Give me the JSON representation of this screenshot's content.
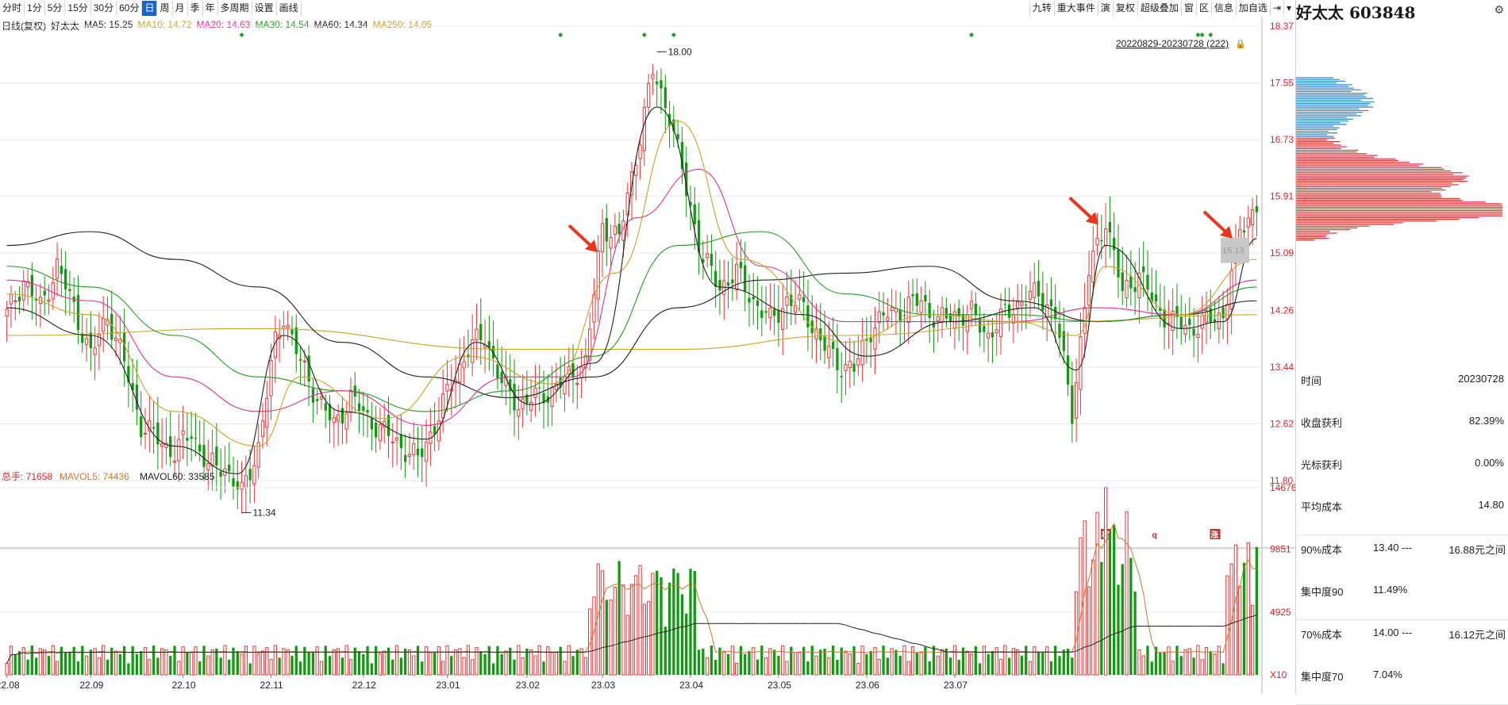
{
  "toolbar": {
    "left": [
      "分时",
      "1分",
      "5分",
      "15分",
      "30分",
      "60分",
      "日",
      "周",
      "月",
      "季",
      "年",
      "多周期",
      "设置",
      "画线"
    ],
    "active": "日",
    "right": [
      "九转",
      "重大事件",
      "演",
      "复权",
      "超级叠加",
      "窗",
      "区",
      "信息",
      "加自选"
    ]
  },
  "info": {
    "period": "日线(复权)",
    "name": "好太太",
    "ma": [
      {
        "text": "MA5: 15.25",
        "color": "#222222"
      },
      {
        "text": "MA10: 14.72",
        "color": "#c9a227"
      },
      {
        "text": "MA20: 14.63",
        "color": "#e0338a"
      },
      {
        "text": "MA30: 14.54",
        "color": "#1e9e1e"
      },
      {
        "text": "MA60: 14.34",
        "color": "#222222"
      },
      {
        "text": "MA250: 14.05",
        "color": "#c9a227"
      }
    ]
  },
  "chart_data": {
    "type": "candlestick",
    "date_range_label": "20220829-20230728 (222)",
    "price_ticks": [
      "18.37",
      "17.55",
      "16.73",
      "15.91",
      "15.09",
      "14.26",
      "13.44",
      "12.62",
      "11.80"
    ],
    "ylim": [
      11.0,
      18.37
    ],
    "high_label": "18.00",
    "low_label": "11.34",
    "price_tag": "15.13",
    "x_ticks": [
      "22.08",
      "22.09",
      "22.10",
      "22.11",
      "22.12",
      "23.01",
      "23.02",
      "23.03",
      "23.04",
      "23.05",
      "23.06",
      "23.07"
    ],
    "volume_legend": [
      {
        "text": "总手: 71658",
        "color": "#d6262b"
      },
      {
        "text": "MAVOL5: 74436",
        "color": "#c9782a"
      },
      {
        "text": "MAVOL60: 33585",
        "color": "#222222"
      }
    ],
    "volume_ticks": [
      "14676",
      "9851",
      "4925",
      "X10"
    ],
    "volume_max": 14676,
    "event_markers": [
      "榜",
      "q",
      "涨"
    ],
    "anchors": [
      [
        0,
        14.2
      ],
      [
        4,
        14.7
      ],
      [
        8,
        14.3
      ],
      [
        12,
        14.9
      ],
      [
        16,
        14.3
      ],
      [
        20,
        13.6
      ],
      [
        24,
        14.2
      ],
      [
        28,
        13.5
      ],
      [
        32,
        12.6
      ],
      [
        36,
        12.4
      ],
      [
        40,
        12.2
      ],
      [
        44,
        12.5
      ],
      [
        48,
        12.0
      ],
      [
        52,
        12.0
      ],
      [
        56,
        11.6
      ],
      [
        60,
        12.3
      ],
      [
        64,
        13.8
      ],
      [
        66,
        14.2
      ],
      [
        70,
        13.5
      ],
      [
        74,
        13.0
      ],
      [
        78,
        12.6
      ],
      [
        82,
        13.0
      ],
      [
        86,
        12.7
      ],
      [
        90,
        12.5
      ],
      [
        94,
        12.3
      ],
      [
        98,
        12.1
      ],
      [
        102,
        12.6
      ],
      [
        106,
        13.2
      ],
      [
        110,
        13.7
      ],
      [
        114,
        13.9
      ],
      [
        118,
        13.2
      ],
      [
        122,
        12.9
      ],
      [
        126,
        13.0
      ],
      [
        130,
        13.1
      ],
      [
        134,
        13.3
      ],
      [
        138,
        13.5
      ],
      [
        142,
        15.5
      ],
      [
        146,
        15.3
      ],
      [
        150,
        16.5
      ],
      [
        154,
        17.7
      ],
      [
        158,
        17.1
      ],
      [
        162,
        16.0
      ],
      [
        166,
        15.0
      ],
      [
        170,
        14.6
      ],
      [
        174,
        14.8
      ],
      [
        178,
        14.4
      ],
      [
        182,
        14.1
      ],
      [
        186,
        14.4
      ],
      [
        190,
        14.3
      ],
      [
        194,
        13.8
      ],
      [
        198,
        13.5
      ],
      [
        202,
        13.4
      ],
      [
        206,
        14.0
      ],
      [
        210,
        14.2
      ],
      [
        214,
        14.3
      ],
      [
        218,
        14.4
      ],
      [
        222,
        14.1
      ],
      [
        226,
        14.2
      ],
      [
        230,
        14.2
      ],
      [
        234,
        13.9
      ],
      [
        238,
        14.2
      ],
      [
        242,
        14.4
      ],
      [
        246,
        14.5
      ],
      [
        250,
        14.2
      ],
      [
        254,
        12.8
      ],
      [
        258,
        14.8
      ],
      [
        262,
        15.6
      ],
      [
        266,
        14.5
      ],
      [
        270,
        14.8
      ],
      [
        274,
        14.3
      ],
      [
        278,
        14.1
      ],
      [
        282,
        14.0
      ],
      [
        286,
        14.1
      ],
      [
        290,
        14.2
      ],
      [
        294,
        15.4
      ],
      [
        298,
        15.8
      ]
    ],
    "ma_lines": [
      {
        "name": "MA250",
        "color": "#c9a227",
        "points": [
          [
            0,
            13.9
          ],
          [
            60,
            14.0
          ],
          [
            120,
            13.7
          ],
          [
            160,
            13.7
          ],
          [
            200,
            13.9
          ],
          [
            250,
            14.1
          ],
          [
            298,
            14.2
          ]
        ]
      },
      {
        "name": "MA60",
        "color": "#222222",
        "points": [
          [
            0,
            15.2
          ],
          [
            20,
            15.4
          ],
          [
            40,
            15.0
          ],
          [
            60,
            14.6
          ],
          [
            80,
            13.8
          ],
          [
            100,
            13.3
          ],
          [
            120,
            13.0
          ],
          [
            140,
            13.3
          ],
          [
            160,
            14.3
          ],
          [
            180,
            14.7
          ],
          [
            200,
            14.8
          ],
          [
            220,
            14.9
          ],
          [
            240,
            14.4
          ],
          [
            260,
            14.1
          ],
          [
            280,
            14.2
          ],
          [
            298,
            14.4
          ]
        ]
      },
      {
        "name": "MA30",
        "color": "#1e9e1e",
        "points": [
          [
            0,
            14.9
          ],
          [
            20,
            14.6
          ],
          [
            40,
            13.9
          ],
          [
            60,
            13.3
          ],
          [
            80,
            13.1
          ],
          [
            100,
            12.8
          ],
          [
            120,
            13.1
          ],
          [
            140,
            13.6
          ],
          [
            160,
            15.2
          ],
          [
            180,
            15.4
          ],
          [
            200,
            14.5
          ],
          [
            220,
            14.2
          ],
          [
            240,
            14.2
          ],
          [
            260,
            14.1
          ],
          [
            280,
            14.2
          ],
          [
            298,
            14.6
          ]
        ]
      },
      {
        "name": "MA20",
        "color": "#e0338a",
        "points": [
          [
            0,
            14.7
          ],
          [
            20,
            14.4
          ],
          [
            40,
            13.3
          ],
          [
            60,
            12.8
          ],
          [
            80,
            13.1
          ],
          [
            100,
            12.6
          ],
          [
            120,
            13.3
          ],
          [
            135,
            13.3
          ],
          [
            150,
            15.6
          ],
          [
            165,
            16.3
          ],
          [
            180,
            14.9
          ],
          [
            200,
            14.1
          ],
          [
            220,
            14.1
          ],
          [
            240,
            14.1
          ],
          [
            260,
            14.3
          ],
          [
            280,
            14.2
          ],
          [
            298,
            14.7
          ]
        ]
      },
      {
        "name": "MA10",
        "color": "#c9a227",
        "points": [
          [
            0,
            14.5
          ],
          [
            20,
            14.2
          ],
          [
            40,
            12.8
          ],
          [
            60,
            12.3
          ],
          [
            70,
            13.3
          ],
          [
            90,
            12.7
          ],
          [
            110,
            13.6
          ],
          [
            130,
            13.2
          ],
          [
            145,
            14.8
          ],
          [
            160,
            17.0
          ],
          [
            175,
            15.0
          ],
          [
            200,
            13.8
          ],
          [
            220,
            14.2
          ],
          [
            240,
            14.1
          ],
          [
            255,
            13.9
          ],
          [
            262,
            14.9
          ],
          [
            280,
            14.2
          ],
          [
            298,
            15.0
          ]
        ]
      },
      {
        "name": "MA5",
        "color": "#222222",
        "points": [
          [
            0,
            14.3
          ],
          [
            20,
            13.9
          ],
          [
            40,
            12.3
          ],
          [
            55,
            11.9
          ],
          [
            66,
            13.9
          ],
          [
            80,
            12.8
          ],
          [
            100,
            12.4
          ],
          [
            112,
            13.8
          ],
          [
            125,
            12.9
          ],
          [
            140,
            13.5
          ],
          [
            155,
            17.2
          ],
          [
            170,
            14.6
          ],
          [
            190,
            14.2
          ],
          [
            205,
            13.6
          ],
          [
            225,
            14.1
          ],
          [
            245,
            14.3
          ],
          [
            255,
            13.4
          ],
          [
            262,
            15.2
          ],
          [
            280,
            14.0
          ],
          [
            290,
            14.1
          ],
          [
            298,
            15.3
          ]
        ]
      }
    ]
  },
  "side": {
    "title": "好太太 603848",
    "stats": [
      {
        "label": "时间",
        "value": "20230728"
      },
      {
        "label": "收盘获利",
        "value": "82.39%"
      },
      {
        "label": "光标获利",
        "value": "0.00%"
      },
      {
        "label": "平均成本",
        "value": "14.80"
      }
    ],
    "cost": [
      {
        "a": "90%成本",
        "b": "13.40 ---",
        "c": "16.88元之间"
      },
      {
        "a": "集中度90",
        "b": "11.49%",
        "c": ""
      },
      {
        "a": "70%成本",
        "b": "14.00 ---",
        "c": "16.12元之间"
      },
      {
        "a": "集中度70",
        "b": "7.04%",
        "c": ""
      }
    ]
  }
}
